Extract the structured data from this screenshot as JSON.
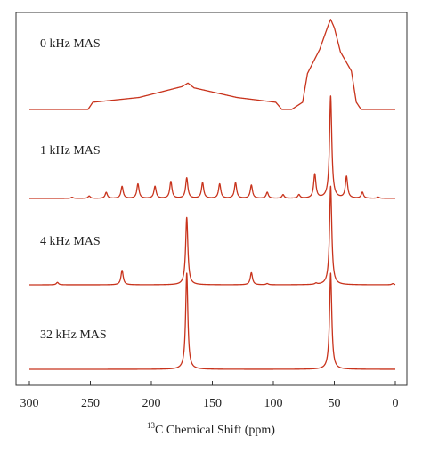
{
  "chart_data": {
    "type": "line",
    "title": "",
    "xlabel_sup": "13",
    "xlabel": "C Chemical Shift (ppm)",
    "ylabel": "",
    "xlim": [
      300,
      0
    ],
    "xticks": [
      300,
      250,
      200,
      150,
      100,
      50,
      0
    ],
    "tick_labels": [
      "300",
      "250",
      "200",
      "150",
      "100",
      "50",
      "0"
    ],
    "line_color": "#c8331c",
    "grid": false,
    "legend": "none",
    "series": [
      {
        "label": "0 kHz MAS",
        "kind": "static_powder",
        "description_points_ppm_height": [
          [
            300,
            0.0
          ],
          [
            252,
            0.0
          ],
          [
            248,
            0.06
          ],
          [
            210,
            0.1
          ],
          [
            175,
            0.19
          ],
          [
            170,
            0.22
          ],
          [
            165,
            0.18
          ],
          [
            130,
            0.1
          ],
          [
            98,
            0.06
          ],
          [
            93,
            0.0
          ],
          [
            85,
            0.0
          ],
          [
            76,
            0.06
          ],
          [
            72,
            0.3
          ],
          [
            62,
            0.5
          ],
          [
            55,
            0.7
          ],
          [
            53,
            0.75
          ],
          [
            50,
            0.68
          ],
          [
            45,
            0.48
          ],
          [
            36,
            0.32
          ],
          [
            32,
            0.06
          ],
          [
            28,
            0.0
          ],
          [
            0,
            0.0
          ]
        ]
      },
      {
        "label": "1 kHz MAS",
        "kind": "peaks",
        "peaks_ppm_height": [
          [
            53,
            0.85
          ],
          [
            66,
            0.2
          ],
          [
            40,
            0.18
          ],
          [
            27,
            0.05
          ],
          [
            79,
            0.03
          ],
          [
            92,
            0.03
          ],
          [
            105,
            0.05
          ],
          [
            118,
            0.11
          ],
          [
            131,
            0.13
          ],
          [
            144,
            0.12
          ],
          [
            158,
            0.13
          ],
          [
            171,
            0.17
          ],
          [
            184,
            0.14
          ],
          [
            197,
            0.1
          ],
          [
            211,
            0.12
          ],
          [
            224,
            0.1
          ],
          [
            237,
            0.05
          ],
          [
            251,
            0.02
          ],
          [
            265,
            0.01
          ],
          [
            14,
            0.01
          ]
        ]
      },
      {
        "label": "4 kHz MAS",
        "kind": "peaks",
        "peaks_ppm_height": [
          [
            53,
            0.82
          ],
          [
            171,
            0.56
          ],
          [
            224,
            0.12
          ],
          [
            118,
            0.1
          ],
          [
            277,
            0.02
          ],
          [
            65,
            0.01
          ],
          [
            105,
            0.01
          ],
          [
            2,
            0.01
          ]
        ]
      },
      {
        "label": "32 kHz MAS",
        "kind": "peaks",
        "peaks_ppm_height": [
          [
            171,
            0.8
          ],
          [
            53,
            0.8
          ]
        ]
      }
    ]
  }
}
